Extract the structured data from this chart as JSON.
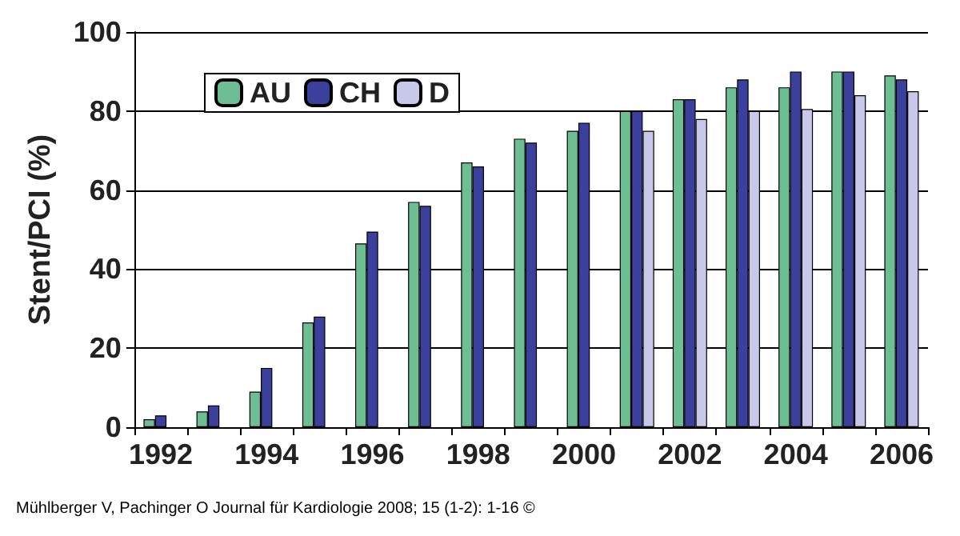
{
  "chart_data": {
    "type": "bar",
    "ylabel": "Stent/PCI (%)",
    "categories": [
      "1992",
      null,
      "1994",
      null,
      "1996",
      null,
      "1998",
      null,
      "2000",
      null,
      "2002",
      null,
      "2004",
      null,
      "2006"
    ],
    "series": [
      {
        "name": "AU",
        "color": "#6dbf93",
        "values": [
          2,
          4,
          9,
          26.5,
          46.5,
          57,
          67,
          73,
          75,
          80,
          83,
          86,
          86,
          90,
          89
        ]
      },
      {
        "name": "CH",
        "color": "#3a409c",
        "values": [
          3,
          5.5,
          15,
          28,
          49.5,
          56,
          66,
          72,
          77,
          80,
          83,
          88,
          90,
          90,
          88
        ]
      },
      {
        "name": "D",
        "color": "#c8c8ea",
        "values": [
          null,
          null,
          null,
          null,
          null,
          null,
          null,
          null,
          null,
          75,
          78,
          80,
          80.5,
          84,
          85
        ]
      }
    ],
    "ylim": [
      0,
      100
    ],
    "yticks": [
      0,
      20,
      40,
      60,
      80,
      100
    ],
    "grid": "y",
    "legend": "top left",
    "annotations": [
      "Mühlberger V, Pachinger O Journal für Kardiologie 2008; 15 (1-2): 1-16 ©"
    ]
  }
}
